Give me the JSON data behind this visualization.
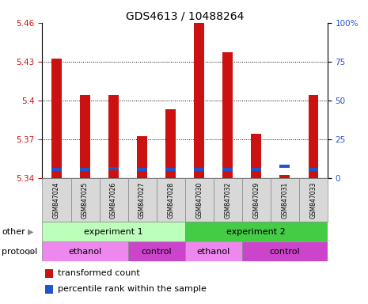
{
  "title": "GDS4613 / 10488264",
  "samples": [
    "GSM847024",
    "GSM847025",
    "GSM847026",
    "GSM847027",
    "GSM847028",
    "GSM847030",
    "GSM847032",
    "GSM847029",
    "GSM847031",
    "GSM847033"
  ],
  "red_values": [
    5.432,
    5.404,
    5.404,
    5.372,
    5.393,
    5.46,
    5.437,
    5.374,
    5.342,
    5.404
  ],
  "blue_values": [
    5.3455,
    5.345,
    5.346,
    5.345,
    5.3455,
    5.3455,
    5.345,
    5.345,
    5.348,
    5.345
  ],
  "y_min": 5.34,
  "y_max": 5.46,
  "y_ticks_left": [
    5.34,
    5.37,
    5.4,
    5.43,
    5.46
  ],
  "y_ticks_right": [
    0,
    25,
    50,
    75,
    100
  ],
  "grid_lines": [
    5.37,
    5.4,
    5.43
  ],
  "bar_color": "#cc1111",
  "blue_color": "#2255cc",
  "experiment1_color": "#bbffbb",
  "experiment2_color": "#44cc44",
  "ethanol_color": "#ee88ee",
  "control_color": "#cc44cc",
  "axis_color_left": "#cc1111",
  "axis_color_right": "#2255cc",
  "sample_bg_color": "#d8d8d8",
  "bar_width": 0.35
}
